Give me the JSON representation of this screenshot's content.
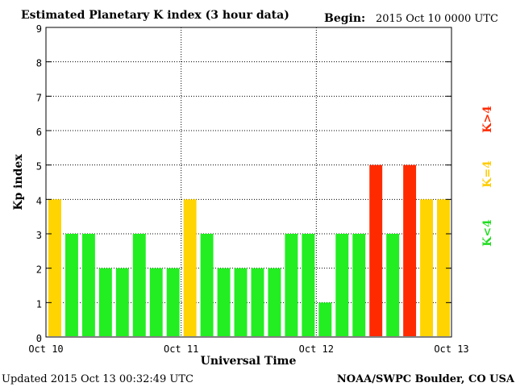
{
  "header": {
    "title": "Estimated Planetary K index (3 hour data)",
    "begin_label": "Begin:",
    "begin_value": "2015 Oct 10 0000 UTC"
  },
  "footer": {
    "updated": "Updated 2015 Oct 13 00:32:49 UTC",
    "credit": "NOAA/SWPC Boulder, CO USA"
  },
  "legend": {
    "high": "K>4",
    "equal": "K=4",
    "low": "K<4"
  },
  "colors": {
    "low": "#22ee22",
    "equal": "#ffd400",
    "high": "#ff2a00",
    "legend_low": "#22dd22",
    "legend_equal": "#ffcc00",
    "legend_high": "#ff2a00"
  },
  "chart_data": {
    "type": "bar",
    "title": "Estimated Planetary K index (3 hour data)",
    "xlabel": "Universal Time",
    "ylabel": "Kp index",
    "ylim": [
      0,
      9
    ],
    "yticks": [
      0,
      1,
      2,
      3,
      4,
      5,
      6,
      7,
      8,
      9
    ],
    "xtick_labels": [
      "Oct 10",
      "Oct 11",
      "Oct 12",
      "Oct 13"
    ],
    "grid": true,
    "values": [
      4,
      3,
      3,
      2,
      2,
      3,
      2,
      2,
      4,
      3,
      2,
      2,
      2,
      2,
      3,
      3,
      1,
      3,
      3,
      5,
      3,
      5,
      4,
      4
    ]
  }
}
